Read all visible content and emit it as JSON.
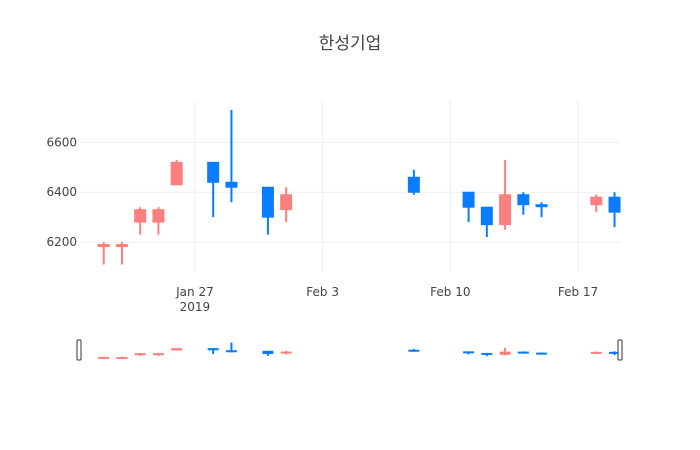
{
  "chart_data": {
    "type": "candlestick",
    "title": "한성기업",
    "x_start": "2019-01-21",
    "x_end": "2019-02-19",
    "x_ticks": [
      {
        "date": "2019-01-27",
        "label": "Jan 27",
        "sublabel": "2019"
      },
      {
        "date": "2019-02-03",
        "label": "Feb 3",
        "sublabel": ""
      },
      {
        "date": "2019-02-10",
        "label": "Feb 10",
        "sublabel": ""
      },
      {
        "date": "2019-02-17",
        "label": "Feb 17",
        "sublabel": ""
      }
    ],
    "y_ticks": [
      6200,
      6400,
      6600
    ],
    "ylim": [
      6080,
      6770
    ],
    "grid": true,
    "rangeslider": true,
    "increasing_color": "#FF7F7F",
    "decreasing_color": "#0A7CFF",
    "candles": [
      {
        "date": "2019-01-22",
        "open": 6190,
        "high": 6200,
        "low": 6110,
        "close": 6190
      },
      {
        "date": "2019-01-23",
        "open": 6190,
        "high": 6200,
        "low": 6110,
        "close": 6190
      },
      {
        "date": "2019-01-24",
        "open": 6280,
        "high": 6340,
        "low": 6230,
        "close": 6330
      },
      {
        "date": "2019-01-25",
        "open": 6280,
        "high": 6340,
        "low": 6230,
        "close": 6330
      },
      {
        "date": "2019-01-26",
        "open": 6430,
        "high": 6530,
        "low": 6430,
        "close": 6520
      },
      {
        "date": "2019-01-28",
        "open": 6520,
        "high": 6520,
        "low": 6300,
        "close": 6440
      },
      {
        "date": "2019-01-29",
        "open": 6440,
        "high": 6730,
        "low": 6360,
        "close": 6420
      },
      {
        "date": "2019-01-31",
        "open": 6420,
        "high": 6420,
        "low": 6230,
        "close": 6300
      },
      {
        "date": "2019-02-01",
        "open": 6330,
        "high": 6420,
        "low": 6280,
        "close": 6390
      },
      {
        "date": "2019-02-08",
        "open": 6460,
        "high": 6490,
        "low": 6390,
        "close": 6400
      },
      {
        "date": "2019-02-11",
        "open": 6400,
        "high": 6400,
        "low": 6280,
        "close": 6340
      },
      {
        "date": "2019-02-12",
        "open": 6340,
        "high": 6340,
        "low": 6220,
        "close": 6270
      },
      {
        "date": "2019-02-13",
        "open": 6270,
        "high": 6530,
        "low": 6250,
        "close": 6390
      },
      {
        "date": "2019-02-14",
        "open": 6390,
        "high": 6400,
        "low": 6310,
        "close": 6350
      },
      {
        "date": "2019-02-15",
        "open": 6350,
        "high": 6360,
        "low": 6300,
        "close": 6345
      },
      {
        "date": "2019-02-18",
        "open": 6350,
        "high": 6390,
        "low": 6320,
        "close": 6380
      },
      {
        "date": "2019-02-19",
        "open": 6380,
        "high": 6400,
        "low": 6260,
        "close": 6320
      }
    ]
  }
}
